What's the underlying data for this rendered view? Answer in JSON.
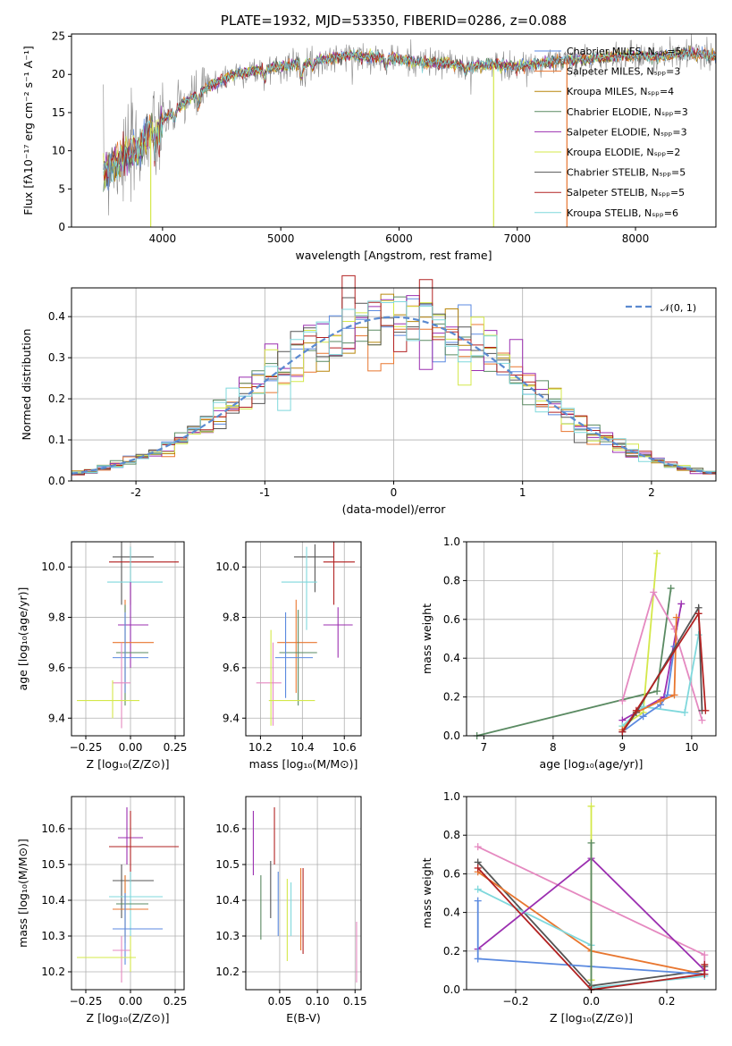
{
  "colors": {
    "chabrier_miles": "#5b8ae0",
    "salpeter_miles": "#e8762f",
    "kroupa_miles": "#b8860b",
    "chabrier_elodie": "#5a8a62",
    "salpeter_elodie": "#9b2fb0",
    "kroupa_elodie": "#d4e84a",
    "chabrier_stelib": "#555555",
    "salpeter_stelib": "#b22222",
    "kroupa_stelib": "#7fd8dc",
    "pink": "#e589c0",
    "gray_spec": "#888888",
    "normal_curve": "#5b8ad0"
  },
  "chart_data": [
    {
      "id": "spectrum",
      "type": "line",
      "title": "PLATE=1932, MJD=53350, FIBERID=0286, z=0.088",
      "xlabel": "wavelength [Angstrom, rest frame]",
      "ylabel": "Flux [fλ10⁻¹⁷ erg cm⁻² s⁻¹ A⁻¹]",
      "xlim": [
        3230,
        8680
      ],
      "ylim": [
        0,
        25.3
      ],
      "xticks": [
        4000,
        5000,
        6000,
        7000,
        8000
      ],
      "yticks": [
        0,
        5,
        10,
        15,
        20,
        25
      ],
      "legend_position": "right",
      "continuum": [
        [
          3500,
          7
        ],
        [
          3600,
          8.5
        ],
        [
          3800,
          10
        ],
        [
          3900,
          13
        ],
        [
          4000,
          14
        ],
        [
          4200,
          16.5
        ],
        [
          4400,
          18.5
        ],
        [
          4600,
          20
        ],
        [
          4800,
          20.5
        ],
        [
          5000,
          21
        ],
        [
          5200,
          21.5
        ],
        [
          5400,
          22
        ],
        [
          5600,
          22.5
        ],
        [
          5800,
          22.3
        ],
        [
          6000,
          22
        ],
        [
          6200,
          21.5
        ],
        [
          6400,
          21.5
        ],
        [
          6600,
          21
        ],
        [
          6800,
          21.3
        ],
        [
          7000,
          21
        ],
        [
          7200,
          21.5
        ],
        [
          7400,
          21.8
        ],
        [
          7600,
          22
        ],
        [
          7800,
          22.3
        ],
        [
          8000,
          22.5
        ],
        [
          8200,
          22.3
        ],
        [
          8400,
          22.8
        ],
        [
          8680,
          22.5
        ]
      ],
      "legend": [
        {
          "label": "Chabrier MILES, Nₛₚₚ=5",
          "color_key": "chabrier_miles"
        },
        {
          "label": "Salpeter MILES, Nₛₚₚ=3",
          "color_key": "salpeter_miles"
        },
        {
          "label": "Kroupa MILES, Nₛₚₚ=4",
          "color_key": "kroupa_miles"
        },
        {
          "label": "Chabrier ELODIE, Nₛₚₚ=3",
          "color_key": "chabrier_elodie"
        },
        {
          "label": "Salpeter ELODIE, Nₛₚₚ=3",
          "color_key": "salpeter_elodie"
        },
        {
          "label": "Kroupa ELODIE, Nₛₚₚ=2",
          "color_key": "kroupa_elodie"
        },
        {
          "label": "Chabrier STELIB, Nₛₚₚ=5",
          "color_key": "chabrier_stelib"
        },
        {
          "label": "Salpeter STELIB, Nₛₚₚ=5",
          "color_key": "salpeter_stelib"
        },
        {
          "label": "Kroupa STELIB, Nₛₚₚ=6",
          "color_key": "kroupa_stelib"
        }
      ],
      "vertical_spikes": [
        {
          "x": 3900,
          "color_key": "kroupa_elodie"
        },
        {
          "x": 6800,
          "color_key": "kroupa_elodie"
        },
        {
          "x": 7420,
          "color_key": "salpeter_miles"
        }
      ]
    },
    {
      "id": "residuals",
      "type": "bar",
      "xlabel": "(data-model)/error",
      "ylabel": "Normed distribution",
      "xlim": [
        -2.5,
        2.5
      ],
      "ylim": [
        0,
        0.47
      ],
      "xticks": [
        -2,
        -1,
        0,
        1,
        2
      ],
      "yticks": [
        0.0,
        0.1,
        0.2,
        0.3,
        0.4
      ],
      "grid": true,
      "legend_position": "top-right",
      "curve_label": "𝒩(0, 1)",
      "bin_width": 0.1
    },
    {
      "id": "age_vs_Z",
      "type": "scatter",
      "xlabel": "Z [log₁₀(Z/Z⊙)]",
      "ylabel": "age  [log₁₀(age/yr)]",
      "xlim": [
        -0.33,
        0.3
      ],
      "ylim": [
        9.33,
        10.1
      ],
      "xticks": [
        -0.25,
        0.0,
        0.25
      ],
      "xticklabels": [
        "−0.25",
        "0.00",
        "0.25"
      ],
      "yticks": [
        9.4,
        9.6,
        9.8,
        10.0
      ],
      "yticklabels": [
        "9.4",
        "9.6",
        "9.8",
        "10.0"
      ],
      "grid": true,
      "points": [
        {
          "x": -0.05,
          "xe": [
            -0.1,
            0.13
          ],
          "y": 10.04,
          "ye": [
            9.85,
            10.1
          ],
          "c": "chabrier_stelib"
        },
        {
          "x": 0.0,
          "xe": [
            -0.12,
            0.27
          ],
          "y": 10.02,
          "ye": [
            9.85,
            10.08
          ],
          "c": "salpeter_stelib"
        },
        {
          "x": 0.0,
          "xe": [
            -0.13,
            0.18
          ],
          "y": 9.94,
          "ye": [
            9.7,
            10.08
          ],
          "c": "kroupa_stelib"
        },
        {
          "x": 0.0,
          "xe": [
            -0.07,
            0.1
          ],
          "y": 9.77,
          "ye": [
            9.6,
            9.94
          ],
          "c": "salpeter_elodie"
        },
        {
          "x": -0.03,
          "xe": [
            -0.1,
            0.13
          ],
          "y": 9.7,
          "ye": [
            9.5,
            9.87
          ],
          "c": "salpeter_miles"
        },
        {
          "x": -0.03,
          "xe": [
            -0.08,
            0.1
          ],
          "y": 9.66,
          "ye": [
            9.45,
            9.85
          ],
          "c": "chabrier_elodie"
        },
        {
          "x": -0.03,
          "xe": [
            -0.1,
            0.1
          ],
          "y": 9.64,
          "ye": [
            9.5,
            9.82
          ],
          "c": "chabrier_miles"
        },
        {
          "x": -0.05,
          "xe": [
            -0.1,
            0.0
          ],
          "y": 9.54,
          "ye": [
            9.36,
            9.7
          ],
          "c": "pink"
        },
        {
          "x": -0.1,
          "xe": [
            -0.3,
            0.05
          ],
          "y": 9.47,
          "ye": [
            9.4,
            9.55
          ],
          "c": "kroupa_elodie"
        }
      ]
    },
    {
      "id": "age_vs_mass",
      "type": "scatter",
      "xlabel": "mass [log₁₀(M/M⊙)]",
      "ylabel": "",
      "xlim": [
        10.13,
        10.68
      ],
      "ylim": [
        9.33,
        10.1
      ],
      "xticks": [
        10.2,
        10.4,
        10.6
      ],
      "xticklabels": [
        "10.2",
        "10.4",
        "10.6"
      ],
      "yticks": [
        9.4,
        9.6,
        9.8,
        10.0
      ],
      "yticklabels": [
        "9.4",
        "9.6",
        "9.8",
        "10.0"
      ],
      "grid": true,
      "points": [
        {
          "x": 10.46,
          "xe": [
            10.36,
            10.55
          ],
          "y": 10.04,
          "ye": [
            9.9,
            10.09
          ],
          "c": "chabrier_stelib"
        },
        {
          "x": 10.55,
          "xe": [
            10.5,
            10.65
          ],
          "y": 10.02,
          "ye": [
            9.85,
            10.1
          ],
          "c": "salpeter_stelib"
        },
        {
          "x": 10.42,
          "xe": [
            10.3,
            10.47
          ],
          "y": 9.94,
          "ye": [
            9.75,
            10.08
          ],
          "c": "kroupa_stelib"
        },
        {
          "x": 10.57,
          "xe": [
            10.5,
            10.64
          ],
          "y": 9.77,
          "ye": [
            9.64,
            9.84
          ],
          "c": "salpeter_elodie"
        },
        {
          "x": 10.37,
          "xe": [
            10.28,
            10.47
          ],
          "y": 9.7,
          "ye": [
            9.5,
            9.87
          ],
          "c": "salpeter_miles"
        },
        {
          "x": 10.38,
          "xe": [
            10.29,
            10.47
          ],
          "y": 9.66,
          "ye": [
            9.45,
            9.83
          ],
          "c": "chabrier_elodie"
        },
        {
          "x": 10.32,
          "xe": [
            10.27,
            10.45
          ],
          "y": 9.64,
          "ye": [
            9.48,
            9.82
          ],
          "c": "chabrier_miles"
        },
        {
          "x": 10.26,
          "xe": [
            10.18,
            10.3
          ],
          "y": 9.54,
          "ye": [
            9.37,
            9.7
          ],
          "c": "pink"
        },
        {
          "x": 10.25,
          "xe": [
            10.24,
            10.46
          ],
          "y": 9.47,
          "ye": [
            9.37,
            9.75
          ],
          "c": "kroupa_elodie"
        }
      ]
    },
    {
      "id": "weight_vs_age",
      "type": "line",
      "xlabel": "age  [log₁₀(age/yr)]",
      "ylabel": "mass weight",
      "xlim": [
        6.75,
        10.35
      ],
      "ylim": [
        0,
        1.0
      ],
      "xticks": [
        7,
        8,
        9,
        10
      ],
      "xticklabels": [
        "7",
        "8",
        "9",
        "10"
      ],
      "yticks": [
        0.0,
        0.2,
        0.4,
        0.6,
        0.8,
        1.0
      ],
      "yticklabels": [
        "0.0",
        "0.2",
        "0.4",
        "0.6",
        "0.8",
        "1.0"
      ],
      "grid": true,
      "series": [
        {
          "c": "chabrier_elodie",
          "x": [
            6.9,
            9.5,
            9.7
          ],
          "y": [
            0.0,
            0.23,
            0.76
          ]
        },
        {
          "c": "kroupa_elodie",
          "x": [
            9.0,
            9.3,
            9.5
          ],
          "y": [
            0.05,
            0.12,
            0.94
          ]
        },
        {
          "c": "pink",
          "x": [
            9.0,
            9.45,
            9.75,
            10.15
          ],
          "y": [
            0.18,
            0.74,
            0.55,
            0.08
          ]
        },
        {
          "c": "salpeter_elodie",
          "x": [
            9.0,
            9.6,
            9.85
          ],
          "y": [
            0.08,
            0.2,
            0.68
          ]
        },
        {
          "c": "kroupa_stelib",
          "x": [
            9.0,
            9.3,
            9.9,
            10.1
          ],
          "y": [
            0.05,
            0.15,
            0.12,
            0.52
          ]
        },
        {
          "c": "chabrier_miles",
          "x": [
            9.0,
            9.3,
            9.55,
            9.65,
            9.75
          ],
          "y": [
            0.02,
            0.1,
            0.16,
            0.21,
            0.46
          ]
        },
        {
          "c": "salpeter_miles",
          "x": [
            9.0,
            9.2,
            9.55,
            9.75,
            9.78
          ],
          "y": [
            0.03,
            0.12,
            0.18,
            0.21,
            0.61
          ]
        },
        {
          "c": "chabrier_stelib",
          "x": [
            9.0,
            9.2,
            10.1,
            10.15
          ],
          "y": [
            0.02,
            0.12,
            0.66,
            0.13
          ]
        },
        {
          "c": "salpeter_stelib",
          "x": [
            9.0,
            9.2,
            10.1,
            10.2
          ],
          "y": [
            0.02,
            0.13,
            0.63,
            0.13
          ]
        }
      ]
    },
    {
      "id": "mass_vs_Z",
      "type": "scatter",
      "xlabel": "Z [log₁₀(Z/Z⊙)]",
      "ylabel": "mass [log₁₀(M/M⊙)]",
      "xlim": [
        -0.33,
        0.3
      ],
      "ylim": [
        10.15,
        10.69
      ],
      "xticks": [
        -0.25,
        0.0,
        0.25
      ],
      "xticklabels": [
        "−0.25",
        "0.00",
        "0.25"
      ],
      "yticks": [
        10.2,
        10.3,
        10.4,
        10.5,
        10.6
      ],
      "yticklabels": [
        "10.2",
        "10.3",
        "10.4",
        "10.5",
        "10.6"
      ],
      "grid": true,
      "points": [
        {
          "x": -0.02,
          "xe": [
            -0.07,
            0.07
          ],
          "y": 10.575,
          "ye": [
            10.5,
            10.66
          ],
          "c": "salpeter_elodie"
        },
        {
          "x": 0.0,
          "xe": [
            -0.12,
            0.27
          ],
          "y": 10.55,
          "ye": [
            10.45,
            10.65
          ],
          "c": "salpeter_stelib"
        },
        {
          "x": -0.05,
          "xe": [
            -0.1,
            0.13
          ],
          "y": 10.455,
          "ye": [
            10.35,
            10.5
          ],
          "c": "chabrier_stelib"
        },
        {
          "x": 0.0,
          "xe": [
            -0.12,
            0.18
          ],
          "y": 10.41,
          "ye": [
            10.3,
            10.48
          ],
          "c": "kroupa_stelib"
        },
        {
          "x": -0.03,
          "xe": [
            -0.08,
            0.1
          ],
          "y": 10.39,
          "ye": [
            10.3,
            10.47
          ],
          "c": "chabrier_elodie"
        },
        {
          "x": -0.03,
          "xe": [
            -0.1,
            0.1
          ],
          "y": 10.375,
          "ye": [
            10.28,
            10.47
          ],
          "c": "salpeter_miles"
        },
        {
          "x": -0.03,
          "xe": [
            -0.1,
            0.18
          ],
          "y": 10.32,
          "ye": [
            10.22,
            10.42
          ],
          "c": "chabrier_miles"
        },
        {
          "x": -0.05,
          "xe": [
            -0.1,
            0.0
          ],
          "y": 10.26,
          "ye": [
            10.17,
            10.3
          ],
          "c": "pink"
        },
        {
          "x": 0.0,
          "xe": [
            -0.3,
            0.03
          ],
          "y": 10.24,
          "ye": [
            10.2,
            10.3
          ],
          "c": "kroupa_elodie"
        }
      ]
    },
    {
      "id": "mass_vs_ebv",
      "type": "scatter",
      "xlabel": "E(B-V)",
      "ylabel": "",
      "xlim": [
        0.005,
        0.158
      ],
      "ylim": [
        10.15,
        10.69
      ],
      "xticks": [
        0.05,
        0.1,
        0.15
      ],
      "xticklabels": [
        "0.05",
        "0.10",
        "0.15"
      ],
      "yticks": [
        10.2,
        10.3,
        10.4,
        10.5,
        10.6
      ],
      "yticklabels": [
        "10.2",
        "10.3",
        "10.4",
        "10.5",
        "10.6"
      ],
      "grid": true,
      "bars": [
        {
          "x": 0.015,
          "y0": 10.47,
          "y1": 10.65,
          "c": "salpeter_elodie"
        },
        {
          "x": 0.025,
          "y0": 10.29,
          "y1": 10.47,
          "c": "chabrier_elodie"
        },
        {
          "x": 0.038,
          "y0": 10.35,
          "y1": 10.51,
          "c": "chabrier_stelib"
        },
        {
          "x": 0.043,
          "y0": 10.5,
          "y1": 10.66,
          "c": "salpeter_stelib"
        },
        {
          "x": 0.048,
          "y0": 10.3,
          "y1": 10.48,
          "c": "chabrier_miles"
        },
        {
          "x": 0.06,
          "y0": 10.23,
          "y1": 10.46,
          "c": "kroupa_elodie"
        },
        {
          "x": 0.065,
          "y0": 10.3,
          "y1": 10.45,
          "c": "kroupa_stelib"
        },
        {
          "x": 0.078,
          "y0": 10.26,
          "y1": 10.49,
          "c": "salpeter_miles"
        },
        {
          "x": 0.081,
          "y0": 10.25,
          "y1": 10.49,
          "c": "salpeter_stelib"
        },
        {
          "x": 0.152,
          "y0": 10.17,
          "y1": 10.34,
          "c": "pink"
        }
      ]
    },
    {
      "id": "weight_vs_Z",
      "type": "line",
      "xlabel": "Z [log₁₀(Z/Z⊙)]",
      "ylabel": "mass weight",
      "xlim": [
        -0.33,
        0.33
      ],
      "ylim": [
        0,
        1.0
      ],
      "xticks": [
        -0.2,
        0.0,
        0.2
      ],
      "xticklabels": [
        "−0.2",
        "0.0",
        "0.2"
      ],
      "yticks": [
        0.0,
        0.2,
        0.4,
        0.6,
        0.8,
        1.0
      ],
      "yticklabels": [
        "0.0",
        "0.2",
        "0.4",
        "0.6",
        "0.8",
        "1.0"
      ],
      "grid": true,
      "series": [
        {
          "c": "pink",
          "x": [
            -0.3,
            0.3,
            0.3
          ],
          "y": [
            0.74,
            0.18,
            0.08
          ]
        },
        {
          "c": "chabrier_stelib",
          "x": [
            -0.3,
            0.0,
            0.3,
            0.3
          ],
          "y": [
            0.66,
            0.02,
            0.1,
            0.12
          ]
        },
        {
          "c": "salpeter_miles",
          "x": [
            -0.3,
            0.0,
            0.3
          ],
          "y": [
            0.61,
            0.2,
            0.08
          ]
        },
        {
          "c": "kroupa_stelib",
          "x": [
            -0.3,
            0.0,
            0.0,
            0.3
          ],
          "y": [
            0.52,
            0.23,
            0.01,
            0.07
          ]
        },
        {
          "c": "salpeter_elodie",
          "x": [
            -0.3,
            0.0,
            0.3
          ],
          "y": [
            0.21,
            0.68,
            0.1
          ]
        },
        {
          "c": "chabrier_miles",
          "x": [
            -0.3,
            -0.3,
            0.0,
            0.3
          ],
          "y": [
            0.46,
            0.16,
            0.12,
            0.08
          ]
        },
        {
          "c": "kroupa_elodie",
          "x": [
            0.0,
            0.0
          ],
          "y": [
            0.05,
            0.95
          ]
        },
        {
          "c": "chabrier_elodie",
          "x": [
            0.0,
            0.0
          ],
          "y": [
            0.0,
            0.76
          ]
        },
        {
          "c": "salpeter_stelib",
          "x": [
            -0.3,
            0.0,
            0.3,
            0.3
          ],
          "y": [
            0.63,
            0.0,
            0.08,
            0.13
          ]
        }
      ]
    }
  ]
}
